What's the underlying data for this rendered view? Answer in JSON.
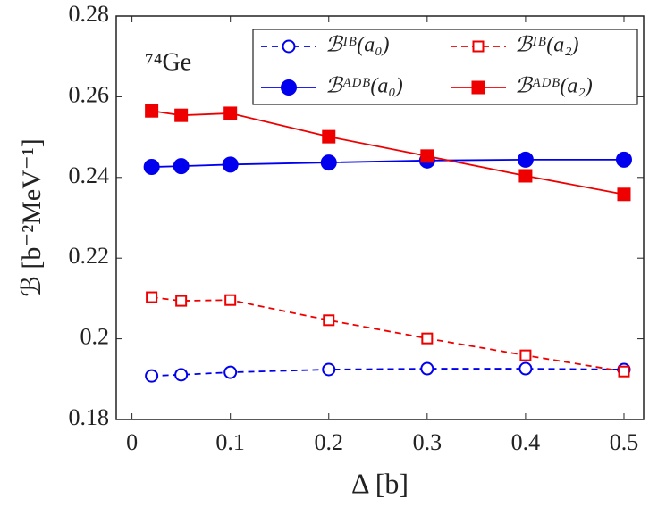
{
  "chart_data": {
    "type": "line",
    "x_label": "Δ [b]",
    "y_label": "ℬ [b⁻²MeV⁻¹]",
    "annotation": "⁷⁴Ge",
    "xlim": [
      -0.016,
      0.52
    ],
    "xticks": [
      0,
      0.1,
      0.2,
      0.3,
      0.4,
      0.5
    ],
    "ylim": [
      0.18,
      0.28
    ],
    "yticks": [
      0.18,
      0.2,
      0.22,
      0.24,
      0.26,
      0.28
    ],
    "x": [
      0.02,
      0.05,
      0.1,
      0.2,
      0.3,
      0.4,
      0.5
    ],
    "series": [
      {
        "name": "ℬᴵᴮ(a₀)",
        "color": "#0000ee",
        "dashed": true,
        "marker": "circle",
        "filled": false,
        "values": [
          0.1908,
          0.1911,
          0.1917,
          0.1924,
          0.1926,
          0.1926,
          0.1924
        ]
      },
      {
        "name": "ℬᴵᴮ(a₂)",
        "color": "#ee0000",
        "dashed": true,
        "marker": "square",
        "filled": false,
        "values": [
          0.2103,
          0.2094,
          0.2096,
          0.2046,
          0.2001,
          0.1959,
          0.1919
        ]
      },
      {
        "name": "ℬᴬᴰᴮ(a₀)",
        "color": "#0000ee",
        "dashed": false,
        "marker": "circle",
        "filled": true,
        "values": [
          0.2426,
          0.2428,
          0.2432,
          0.2437,
          0.2442,
          0.2444,
          0.2444
        ]
      },
      {
        "name": "ℬᴬᴰᴮ(a₂)",
        "color": "#ee0000",
        "dashed": false,
        "marker": "square",
        "filled": true,
        "values": [
          0.2565,
          0.2554,
          0.2559,
          0.2501,
          0.2453,
          0.2404,
          0.2358
        ]
      }
    ]
  }
}
